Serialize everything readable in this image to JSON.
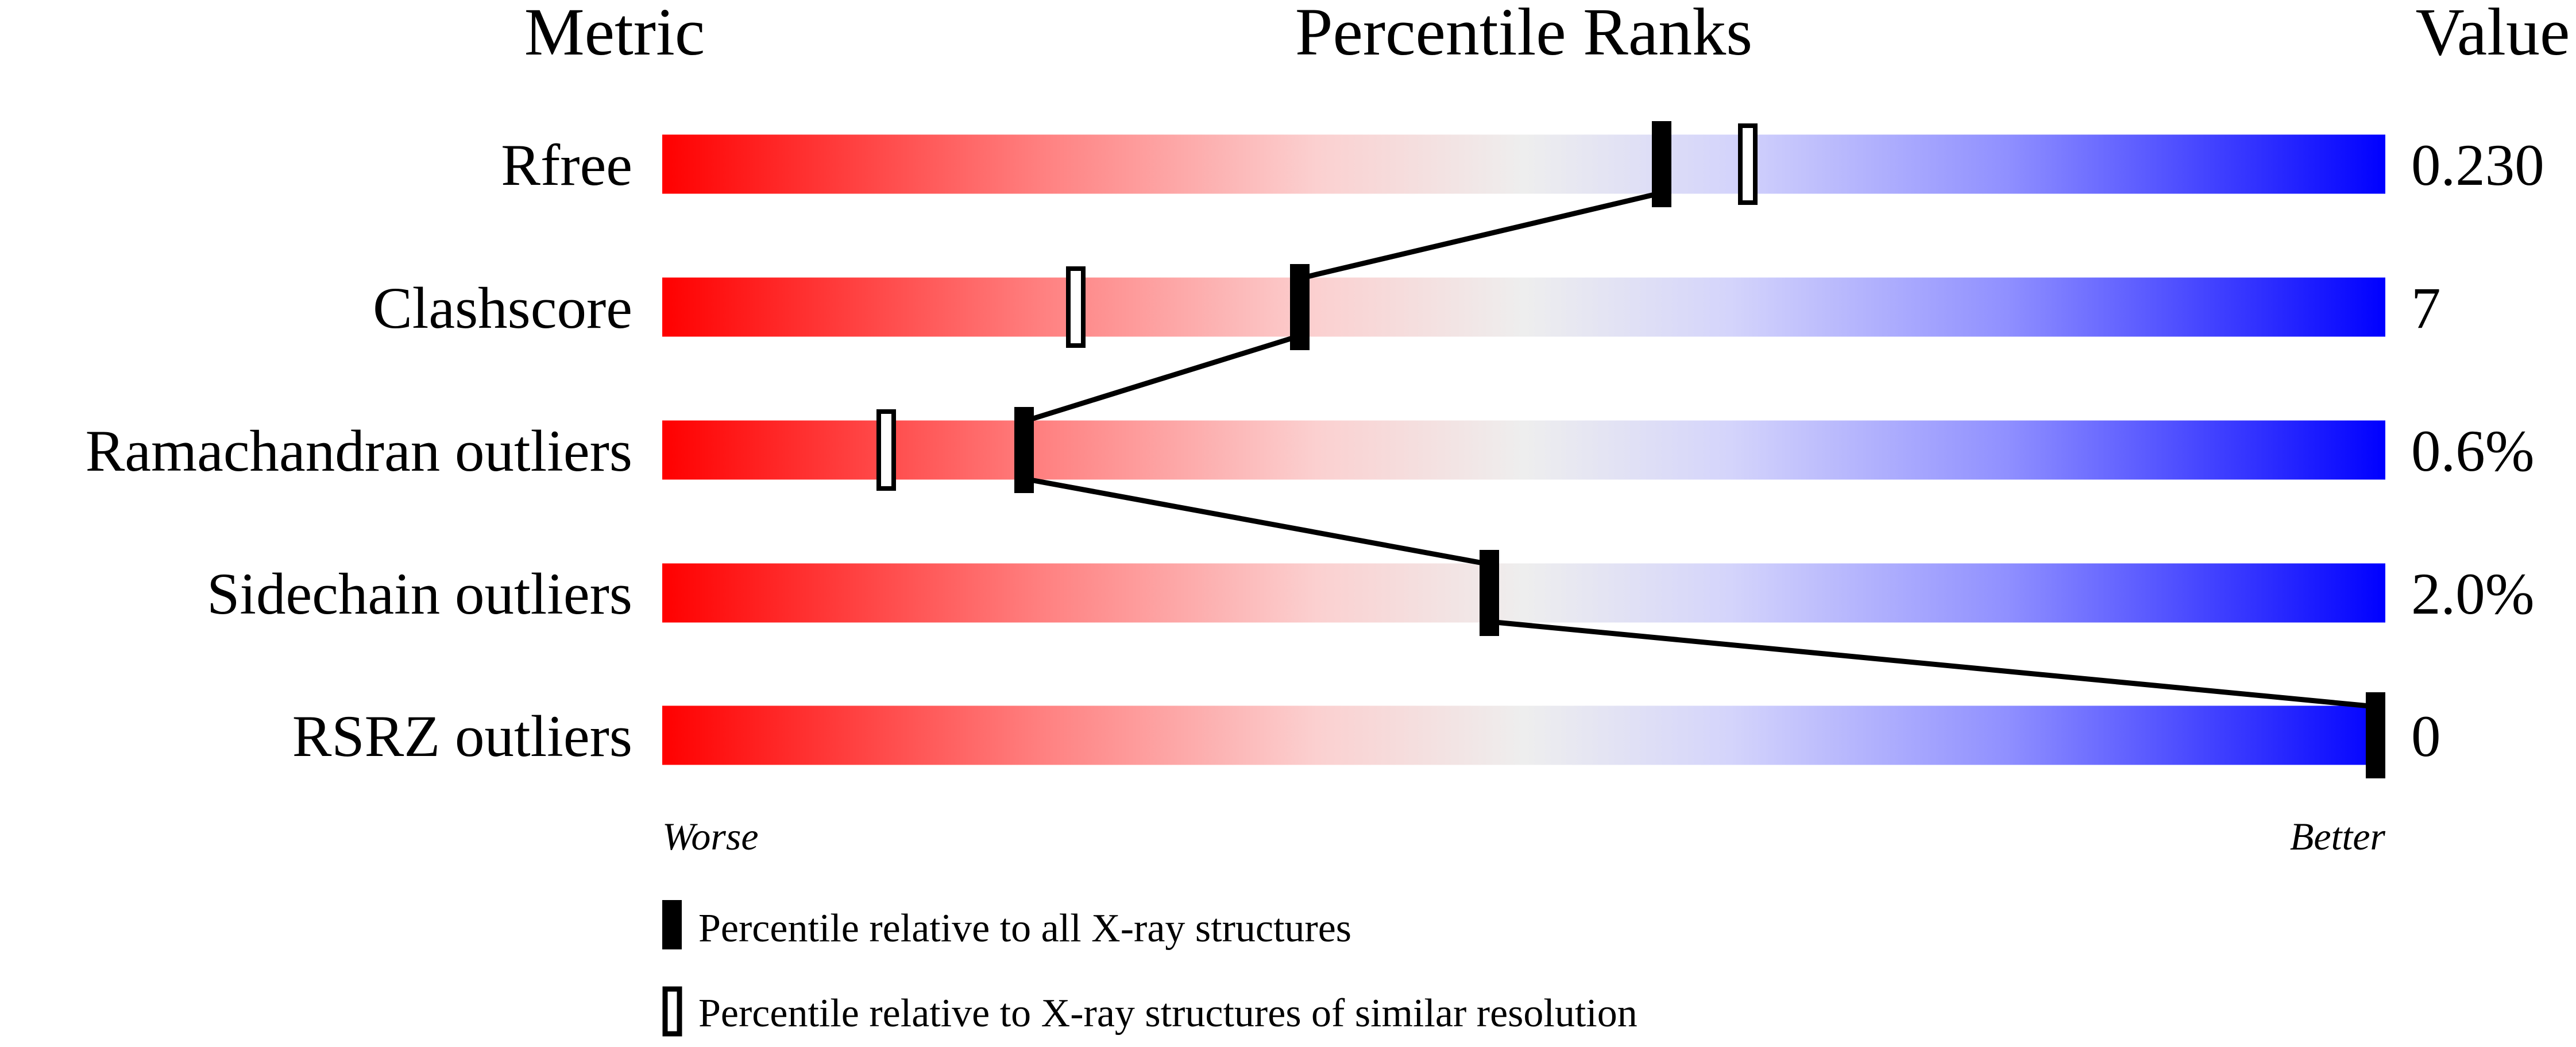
{
  "chart_data": {
    "type": "percentile-bars",
    "headers": {
      "metric": "Metric",
      "ranks": "Percentile Ranks",
      "value": "Value"
    },
    "xlim": [
      0,
      100
    ],
    "scale_low_label": "Worse",
    "scale_high_label": "Better",
    "gradient_colors": [
      "#ff0000",
      "#f0f0f0",
      "#0000ff"
    ],
    "metrics": [
      {
        "name": "Rfree",
        "value": "0.230",
        "percentile_all": 58,
        "percentile_similar": 63
      },
      {
        "name": "Clashscore",
        "value": "7",
        "percentile_all": 37,
        "percentile_similar": 24
      },
      {
        "name": "Ramachandran outliers",
        "value": "0.6%",
        "percentile_all": 21,
        "percentile_similar": 13
      },
      {
        "name": "Sidechain outliers",
        "value": "2.0%",
        "percentile_all": 48,
        "percentile_similar": null
      },
      {
        "name": "RSRZ outliers",
        "value": "0",
        "percentile_all": 100,
        "percentile_similar": null
      }
    ],
    "legend": [
      {
        "marker": "filled",
        "label": "Percentile relative to all X-ray structures"
      },
      {
        "marker": "open",
        "label": "Percentile relative to X-ray structures of similar resolution"
      }
    ]
  }
}
